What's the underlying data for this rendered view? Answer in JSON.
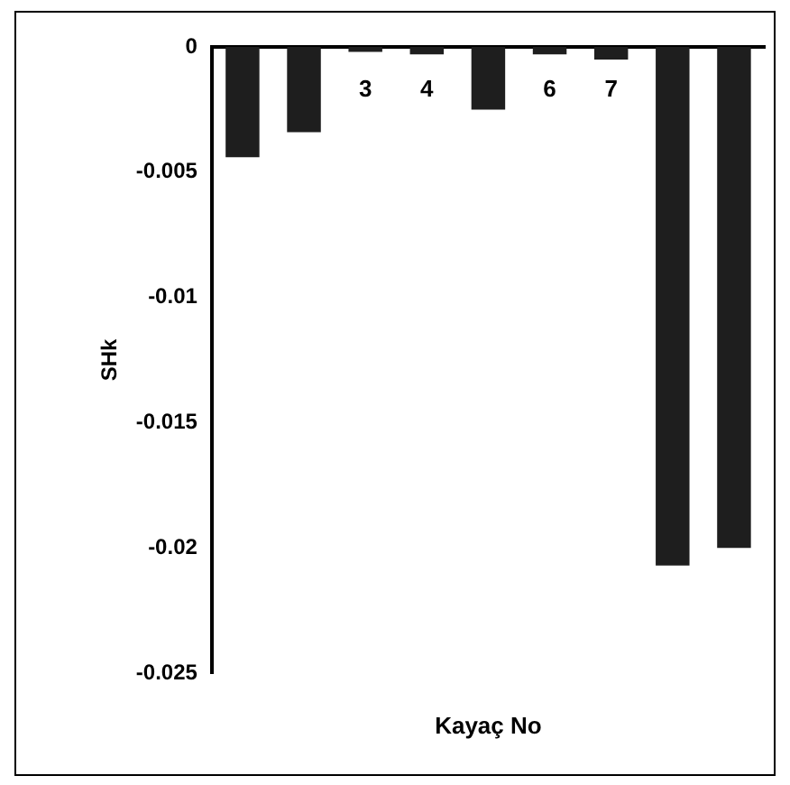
{
  "chart_data": {
    "type": "bar",
    "xlabel": "Kayaç No",
    "ylabel": "SHk",
    "categories": [
      null,
      null,
      "3",
      "4",
      null,
      "6",
      "7",
      null,
      null
    ],
    "values": [
      -0.0044,
      -0.0034,
      -0.0002,
      -0.0003,
      -0.0025,
      -0.0003,
      -0.0005,
      -0.0207,
      -0.02
    ],
    "color": "#1e1e1e",
    "ylim": [
      -0.025,
      0
    ],
    "yticks": [
      -0.025,
      -0.02,
      -0.015,
      -0.01,
      -0.005,
      0
    ],
    "grid": false,
    "legend": false
  }
}
